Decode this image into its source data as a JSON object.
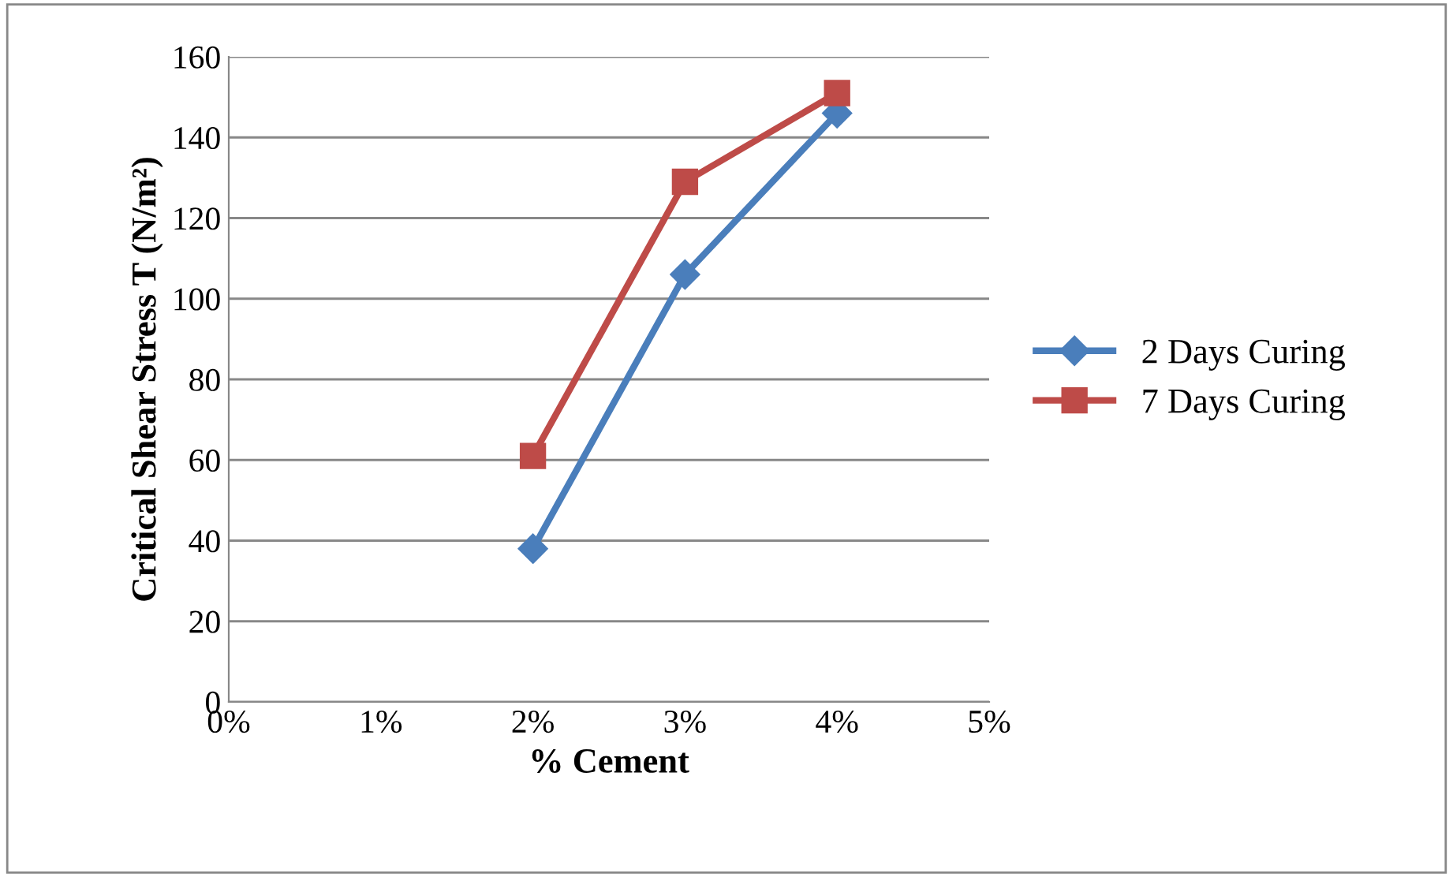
{
  "chart_data": {
    "type": "line",
    "xlabel": "% Cement",
    "ylabel": "Critical Shear Stress T (N/m²)",
    "xlim": [
      0,
      5
    ],
    "xticks": [
      {
        "value": 0,
        "label": "0%"
      },
      {
        "value": 1,
        "label": "1%"
      },
      {
        "value": 2,
        "label": "2%"
      },
      {
        "value": 3,
        "label": "3%"
      },
      {
        "value": 4,
        "label": "4%"
      },
      {
        "value": 5,
        "label": "5%"
      }
    ],
    "ylim": [
      0,
      160
    ],
    "yticks": [
      0,
      20,
      40,
      60,
      80,
      100,
      120,
      140,
      160
    ],
    "grid": "y",
    "legend": "right",
    "line_style": "solid",
    "series": [
      {
        "name": "2 Days Curing",
        "color": "#4a7ebb",
        "marker": "diamond",
        "x": [
          2,
          3,
          4
        ],
        "values": [
          38,
          106,
          146
        ]
      },
      {
        "name": "7 Days Curing",
        "color": "#be4b48",
        "marker": "square",
        "x": [
          2,
          3,
          4
        ],
        "values": [
          61,
          129,
          151
        ]
      }
    ]
  }
}
